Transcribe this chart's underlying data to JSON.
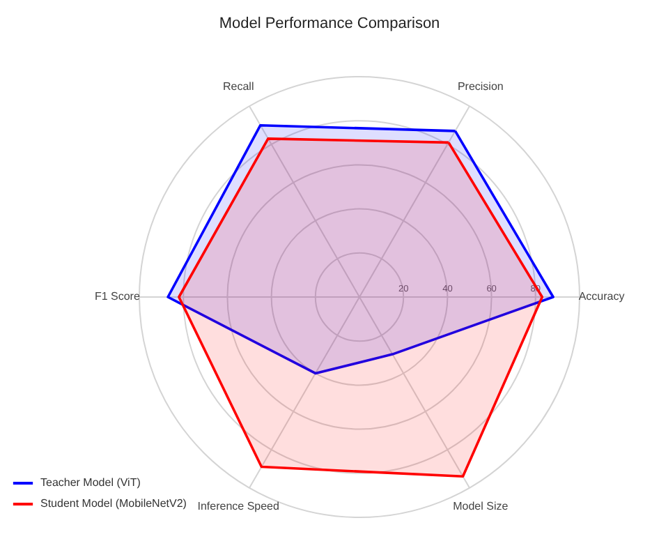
{
  "chart_data": {
    "type": "radar",
    "title": "Model Performance Comparison",
    "categories": [
      "Precision",
      "Accuracy",
      "Model Size",
      "Inference Speed",
      "F1 Score",
      "Recall"
    ],
    "series": [
      {
        "name": "Teacher Model (ViT)",
        "color": "#0000ff",
        "values": [
          87,
          88,
          30,
          40,
          87,
          90
        ]
      },
      {
        "name": "Student Model (MobileNetV2)",
        "color": "#ff0000",
        "values": [
          81,
          83,
          94,
          89,
          82,
          83
        ]
      }
    ],
    "ylim": [
      0,
      100
    ],
    "yticks": [
      20,
      40,
      60,
      80
    ],
    "grid": true,
    "legend": "bottom left"
  }
}
